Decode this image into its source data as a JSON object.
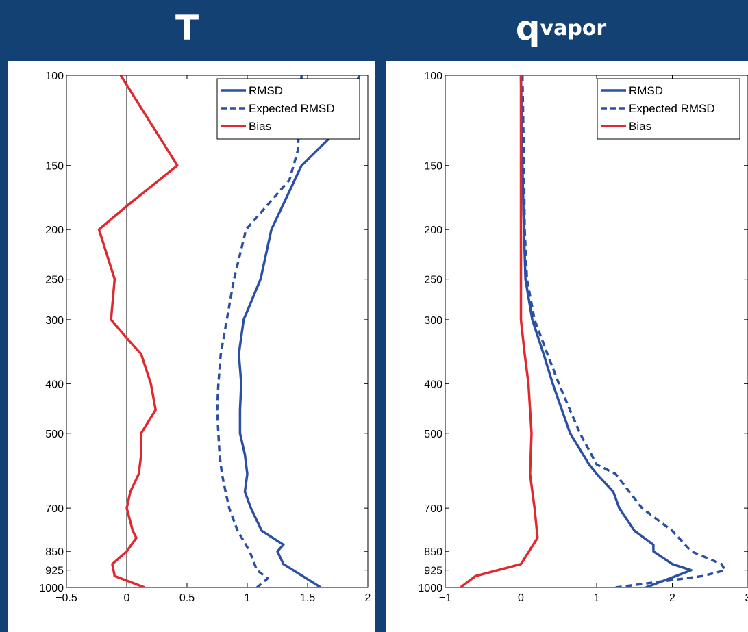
{
  "panels": {
    "left_title": "T",
    "right_title_base": "q",
    "right_title_sub": "vapor"
  },
  "colors": {
    "background": "#144174",
    "rmsd": "#2b4fa3",
    "bias": "#e0282e"
  },
  "chart_data": [
    {
      "type": "line",
      "title": "T",
      "y_scale": "log",
      "y_reversed": true,
      "ylim": [
        100,
        1000
      ],
      "xlim": [
        -0.5,
        2
      ],
      "x_ticks": [
        "−0.5",
        "0",
        "0.5",
        "1",
        "1.5",
        "2"
      ],
      "y_ticks": [
        "100",
        "150",
        "200",
        "250",
        "300",
        "400",
        "500",
        "700",
        "850",
        "925",
        "1000"
      ],
      "legend": "top-right",
      "series": [
        {
          "name": "RMSD",
          "style": "solid",
          "color": "#2b4fa3",
          "points": [
            [
              1.93,
              100
            ],
            [
              1.72,
              130
            ],
            [
              1.45,
              150
            ],
            [
              1.2,
              200
            ],
            [
              1.11,
              250
            ],
            [
              0.97,
              300
            ],
            [
              0.93,
              350
            ],
            [
              0.95,
              400
            ],
            [
              0.94,
              450
            ],
            [
              0.94,
              500
            ],
            [
              0.98,
              550
            ],
            [
              1.0,
              600
            ],
            [
              0.98,
              650
            ],
            [
              1.03,
              700
            ],
            [
              1.12,
              775
            ],
            [
              1.3,
              825
            ],
            [
              1.25,
              850
            ],
            [
              1.3,
              900
            ],
            [
              1.61,
              1000
            ]
          ]
        },
        {
          "name": "Expected RMSD",
          "style": "dashed",
          "color": "#2b4fa3",
          "points": [
            [
              1.45,
              100
            ],
            [
              1.43,
              125
            ],
            [
              1.42,
              140
            ],
            [
              1.35,
              160
            ],
            [
              0.99,
              200
            ],
            [
              0.89,
              250
            ],
            [
              0.83,
              300
            ],
            [
              0.78,
              350
            ],
            [
              0.76,
              400
            ],
            [
              0.75,
              450
            ],
            [
              0.76,
              500
            ],
            [
              0.77,
              550
            ],
            [
              0.79,
              600
            ],
            [
              0.82,
              650
            ],
            [
              0.85,
              700
            ],
            [
              0.92,
              775
            ],
            [
              1.02,
              850
            ],
            [
              1.08,
              925
            ],
            [
              1.17,
              960
            ],
            [
              1.08,
              1000
            ]
          ]
        },
        {
          "name": "Bias",
          "style": "solid",
          "color": "#e0282e",
          "points": [
            [
              -0.05,
              100
            ],
            [
              0.42,
              150
            ],
            [
              0.0,
              180
            ],
            [
              -0.23,
              200
            ],
            [
              -0.1,
              250
            ],
            [
              -0.13,
              300
            ],
            [
              0.02,
              330
            ],
            [
              0.12,
              350
            ],
            [
              0.2,
              400
            ],
            [
              0.24,
              450
            ],
            [
              0.12,
              500
            ],
            [
              0.12,
              550
            ],
            [
              0.1,
              600
            ],
            [
              0.03,
              650
            ],
            [
              0.0,
              700
            ],
            [
              0.05,
              775
            ],
            [
              0.08,
              800
            ],
            [
              0.0,
              850
            ],
            [
              -0.12,
              900
            ],
            [
              -0.1,
              950
            ],
            [
              0.15,
              1000
            ]
          ]
        }
      ]
    },
    {
      "type": "line",
      "title": "q_vapor",
      "y_scale": "log",
      "y_reversed": true,
      "ylim": [
        100,
        1000
      ],
      "xlim": [
        -1,
        3
      ],
      "x_ticks": [
        "−1",
        "0",
        "1",
        "2",
        "3"
      ],
      "y_ticks": [
        "100",
        "150",
        "200",
        "250",
        "300",
        "400",
        "500",
        "700",
        "850",
        "925",
        "1000"
      ],
      "legend": "top-right",
      "series": [
        {
          "name": "RMSD",
          "style": "solid",
          "color": "#2b4fa3",
          "points": [
            [
              0.0,
              100
            ],
            [
              0.02,
              150
            ],
            [
              0.04,
              200
            ],
            [
              0.06,
              250
            ],
            [
              0.15,
              300
            ],
            [
              0.3,
              350
            ],
            [
              0.42,
              400
            ],
            [
              0.65,
              500
            ],
            [
              0.9,
              575
            ],
            [
              1.0,
              600
            ],
            [
              1.22,
              650
            ],
            [
              1.3,
              700
            ],
            [
              1.5,
              775
            ],
            [
              1.75,
              825
            ],
            [
              1.75,
              850
            ],
            [
              2.0,
              900
            ],
            [
              2.25,
              925
            ],
            [
              1.65,
              1000
            ]
          ]
        },
        {
          "name": "Expected RMSD",
          "style": "dashed",
          "color": "#2b4fa3",
          "points": [
            [
              0.02,
              100
            ],
            [
              0.04,
              150
            ],
            [
              0.05,
              200
            ],
            [
              0.08,
              250
            ],
            [
              0.18,
              300
            ],
            [
              0.35,
              350
            ],
            [
              0.5,
              400
            ],
            [
              0.78,
              500
            ],
            [
              1.0,
              575
            ],
            [
              1.25,
              600
            ],
            [
              1.6,
              700
            ],
            [
              2.0,
              775
            ],
            [
              2.25,
              850
            ],
            [
              2.65,
              900
            ],
            [
              2.7,
              925
            ],
            [
              2.4,
              950
            ],
            [
              1.25,
              1000
            ]
          ]
        },
        {
          "name": "Bias",
          "style": "solid",
          "color": "#e0282e",
          "points": [
            [
              0.0,
              100
            ],
            [
              0.0,
              200
            ],
            [
              0.0,
              300
            ],
            [
              0.05,
              350
            ],
            [
              0.1,
              400
            ],
            [
              0.14,
              500
            ],
            [
              0.12,
              600
            ],
            [
              0.18,
              700
            ],
            [
              0.22,
              800
            ],
            [
              0.0,
              900
            ],
            [
              -0.6,
              950
            ],
            [
              -0.8,
              1000
            ]
          ]
        }
      ]
    }
  ]
}
